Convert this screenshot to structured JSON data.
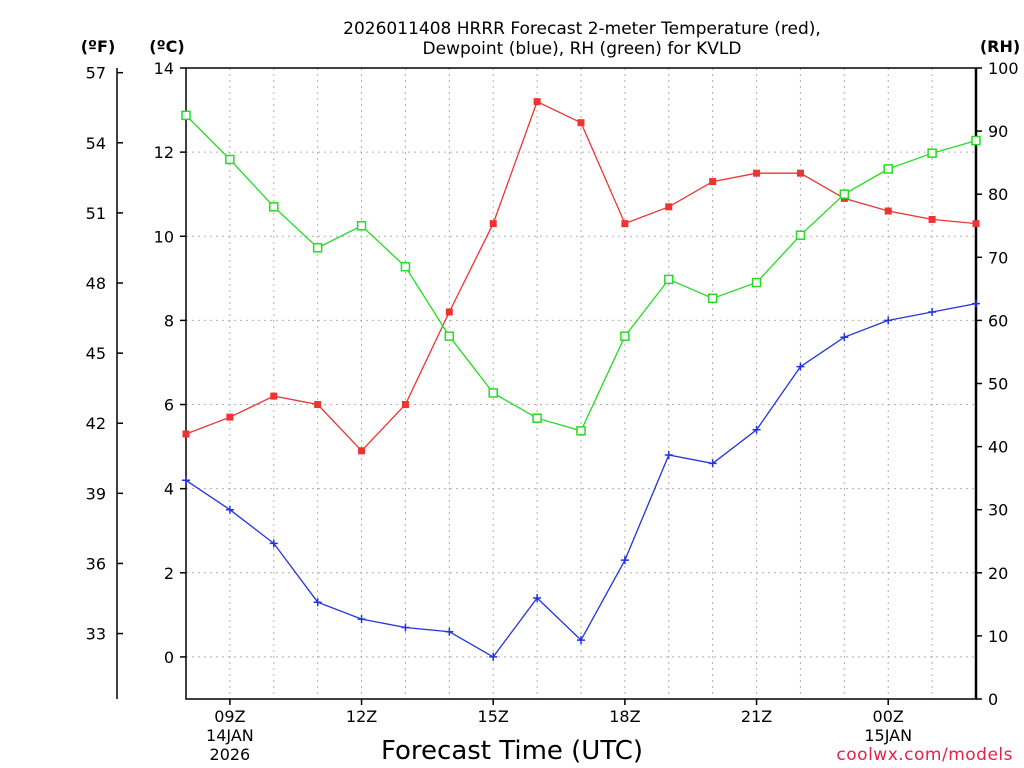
{
  "chart_data": {
    "type": "line",
    "title_line1": "2026011408 HRRR Forecast 2-meter Temperature (red),",
    "title_line2": "Dewpoint (blue), RH (green) for KVLD",
    "xlabel": "Forecast Time (UTC)",
    "credit": "coolwx.com/models",
    "unit_left_f": "(ºF)",
    "unit_left_c": "(ºC)",
    "unit_right": "(RH)",
    "x_hours": [
      8,
      9,
      10,
      11,
      12,
      13,
      14,
      15,
      16,
      17,
      18,
      19,
      20,
      21,
      22,
      23,
      24,
      25,
      26
    ],
    "xlim": [
      8,
      26
    ],
    "x_ticks": [
      {
        "hour": 9,
        "label": "09Z",
        "sub1": "14JAN",
        "sub2": "2026"
      },
      {
        "hour": 12,
        "label": "12Z",
        "sub1": "",
        "sub2": ""
      },
      {
        "hour": 15,
        "label": "15Z",
        "sub1": "",
        "sub2": ""
      },
      {
        "hour": 18,
        "label": "18Z",
        "sub1": "",
        "sub2": ""
      },
      {
        "hour": 21,
        "label": "21Z",
        "sub1": "",
        "sub2": ""
      },
      {
        "hour": 24,
        "label": "00Z",
        "sub1": "15JAN",
        "sub2": ""
      }
    ],
    "ylim_c": [
      -1,
      14
    ],
    "y_ticks_c": [
      "0",
      "2",
      "4",
      "6",
      "8",
      "10",
      "12",
      "14"
    ],
    "y_ticks_f": [
      "33",
      "36",
      "39",
      "42",
      "45",
      "48",
      "51",
      "54",
      "57"
    ],
    "ylim_rh": [
      0,
      100
    ],
    "y_ticks_rh": [
      "0",
      "10",
      "20",
      "30",
      "40",
      "50",
      "60",
      "70",
      "80",
      "90",
      "100"
    ],
    "series": [
      {
        "name": "Temperature",
        "axis": "c",
        "color": "#ee3333",
        "marker": "filled-square",
        "values": [
          5.3,
          5.7,
          6.2,
          6.0,
          4.9,
          6.0,
          8.2,
          10.3,
          13.2,
          12.7,
          10.3,
          10.7,
          11.3,
          11.5,
          11.5,
          10.9,
          10.6,
          10.4,
          10.3
        ]
      },
      {
        "name": "Dewpoint",
        "axis": "c",
        "color": "#2233dd",
        "marker": "plus",
        "values": [
          4.2,
          3.5,
          2.7,
          1.3,
          0.9,
          0.7,
          0.6,
          0.0,
          1.4,
          0.4,
          2.3,
          4.8,
          4.6,
          5.4,
          6.9,
          7.6,
          8.0,
          8.2,
          8.4
        ]
      },
      {
        "name": "RH",
        "axis": "rh",
        "color": "#22dd22",
        "marker": "open-square",
        "values": [
          92.5,
          85.5,
          78,
          71.5,
          75,
          68.5,
          57.5,
          48.5,
          44.5,
          42.5,
          57.5,
          66.5,
          63.5,
          66,
          73.5,
          80,
          84,
          86.5,
          88.5
        ]
      }
    ]
  }
}
